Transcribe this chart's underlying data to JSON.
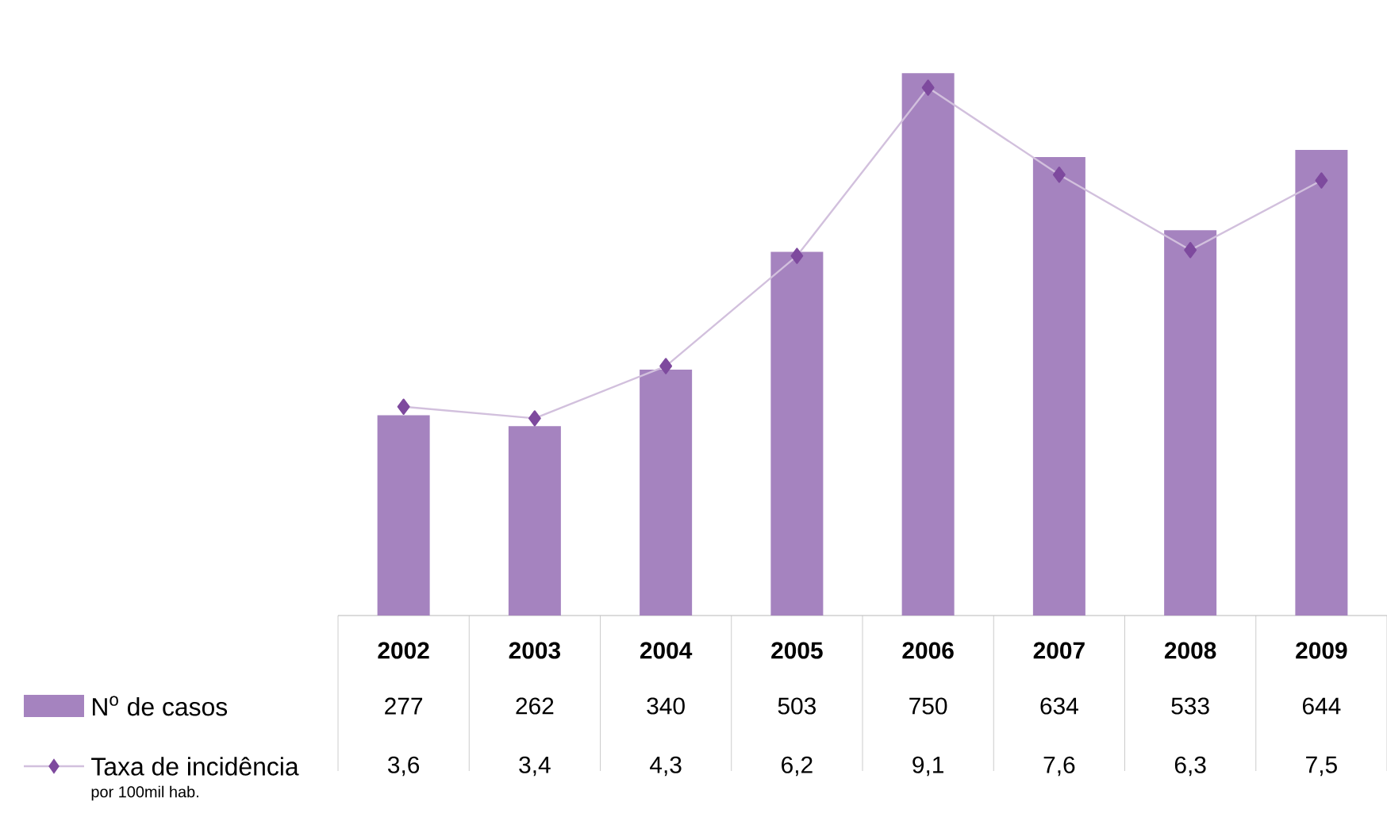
{
  "chart_data": {
    "type": "bar",
    "categories": [
      "2002",
      "2003",
      "2004",
      "2005",
      "2006",
      "2007",
      "2008",
      "2009"
    ],
    "series": [
      {
        "name": "N$^{o}$ de casos",
        "color": "#a583bf",
        "values": [
          277,
          262,
          340,
          503,
          750,
          634,
          533,
          644
        ],
        "value_labels": [
          "277",
          "262",
          "340",
          "503",
          "750",
          "634",
          "533",
          "644"
        ]
      },
      {
        "name": "Taxa de incidência",
        "type": "line",
        "axis": "y2",
        "color": "#7e4a9e",
        "values": [
          3.6,
          3.4,
          4.3,
          6.2,
          9.1,
          7.6,
          6.3,
          7.5
        ],
        "value_labels": [
          "3,6",
          "3,4",
          "4,3",
          "6,2",
          "9,1",
          "7,6",
          "6,3",
          "7,5"
        ]
      }
    ],
    "marker": "diamond",
    "legend": "bottom left",
    "annotations": [
      "por 100mil hab."
    ]
  }
}
